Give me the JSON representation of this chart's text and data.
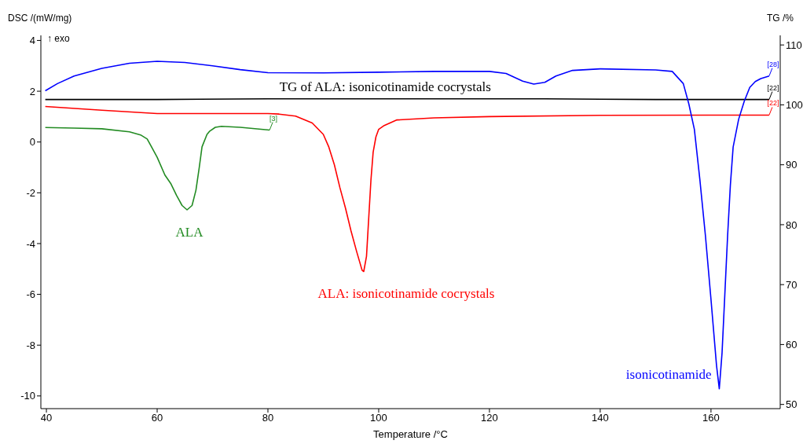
{
  "chart_data": {
    "type": "line",
    "xlabel": "Temperature /°C",
    "ylabel": "DSC /(mW/mg)",
    "y2label": "TG /%",
    "xlim": [
      39,
      172.5
    ],
    "xticks": [
      40,
      60,
      80,
      100,
      120,
      140,
      160
    ],
    "ylim": [
      -10.5,
      4.2
    ],
    "yticks": [
      -10,
      -8,
      -6,
      -4,
      -2,
      0,
      2,
      4
    ],
    "y2lim": [
      49.3,
      111.6
    ],
    "y2ticks": [
      50,
      60,
      70,
      80,
      90,
      100,
      110
    ],
    "series": [
      {
        "name": "TG of ALA: isonicotinamide cocrystals",
        "color": "#000000",
        "axis": "y2",
        "x": [
          39.8,
          60,
          80,
          100,
          130,
          150,
          170.5
        ],
        "values": [
          100.9,
          100.9,
          101,
          101,
          101,
          100.9,
          100.9
        ]
      },
      {
        "name": "ALA: isonicotinamide cocrystals",
        "color": "#ff0000",
        "x": [
          39.8,
          50,
          60,
          70,
          80,
          82,
          85,
          88,
          90,
          91,
          92,
          93,
          94,
          95,
          96,
          97,
          97.3,
          97.8,
          98.2,
          98.6,
          99,
          99.5,
          100,
          101,
          103.3,
          110,
          120,
          140,
          160,
          170.5
        ],
        "values": [
          1.4,
          1.25,
          1.12,
          1.12,
          1.12,
          1.1,
          1.02,
          0.75,
          0.3,
          -0.2,
          -0.9,
          -1.8,
          -2.6,
          -3.5,
          -4.3,
          -5.05,
          -5.1,
          -4.5,
          -3,
          -1.5,
          -0.4,
          0.2,
          0.5,
          0.65,
          0.87,
          0.95,
          1,
          1.05,
          1.06,
          1.06
        ]
      },
      {
        "name": "ALA",
        "color": "#228b22",
        "x": [
          39.8,
          45,
          50,
          55,
          57,
          58.2,
          59,
          60,
          61.4,
          62.5,
          63.5,
          64.5,
          65.4,
          66.3,
          67,
          67.6,
          68.1,
          69,
          69.5,
          70.5,
          71.6,
          75,
          80.3
        ],
        "values": [
          0.57,
          0.55,
          0.52,
          0.4,
          0.28,
          0.12,
          -0.2,
          -0.6,
          -1.3,
          -1.65,
          -2.1,
          -2.5,
          -2.67,
          -2.5,
          -1.9,
          -1,
          -0.19,
          0.3,
          0.43,
          0.58,
          0.62,
          0.58,
          0.47
        ]
      },
      {
        "name": "isonicotinamide",
        "color": "#0000ff",
        "x": [
          39.8,
          42,
          45,
          50,
          55,
          60,
          65,
          70,
          75,
          80,
          90,
          100,
          110,
          120,
          123,
          126,
          128,
          130,
          132,
          135,
          140,
          150,
          153,
          155,
          156,
          157,
          158,
          159,
          160,
          161,
          161.5,
          162,
          162.5,
          163,
          163.5,
          164,
          165,
          166,
          167,
          168,
          169,
          170.5
        ],
        "values": [
          2.02,
          2.3,
          2.6,
          2.9,
          3.1,
          3.18,
          3.13,
          3,
          2.85,
          2.73,
          2.72,
          2.75,
          2.78,
          2.78,
          2.7,
          2.4,
          2.28,
          2.35,
          2.6,
          2.82,
          2.88,
          2.84,
          2.78,
          2.3,
          1.5,
          0.5,
          -1.5,
          -3.7,
          -6.2,
          -8.8,
          -9.72,
          -8.3,
          -6,
          -3.7,
          -1.7,
          -0.2,
          0.9,
          1.6,
          2.15,
          2.38,
          2.5,
          2.6
        ]
      }
    ],
    "annotations": [
      "↑ exo",
      "[3]",
      "[22]",
      "[22]",
      "[28]"
    ]
  }
}
